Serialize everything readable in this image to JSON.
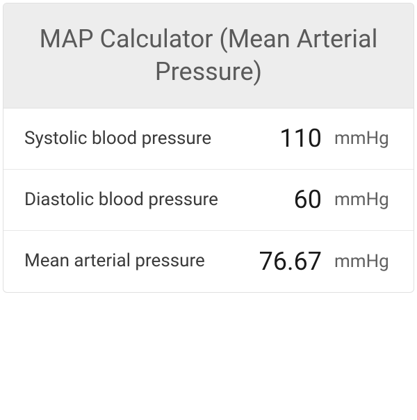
{
  "title": "MAP Calculator (Mean Arterial Pressure)",
  "rows": [
    {
      "label": "Systolic blood pressure",
      "value": "110",
      "unit": "mmHg"
    },
    {
      "label": "Diastolic blood pressure",
      "value": "60",
      "unit": "mmHg"
    },
    {
      "label": "Mean arterial pressure",
      "value": "76.67",
      "unit": "mmHg"
    }
  ],
  "colors": {
    "header_bg": "#ededed",
    "header_text": "#5a5a5a",
    "label_text": "#3a3a3a",
    "value_text": "#1a1a1a",
    "unit_text": "#606060",
    "border": "#e0e0e0",
    "row_border": "#e8e8e8"
  }
}
